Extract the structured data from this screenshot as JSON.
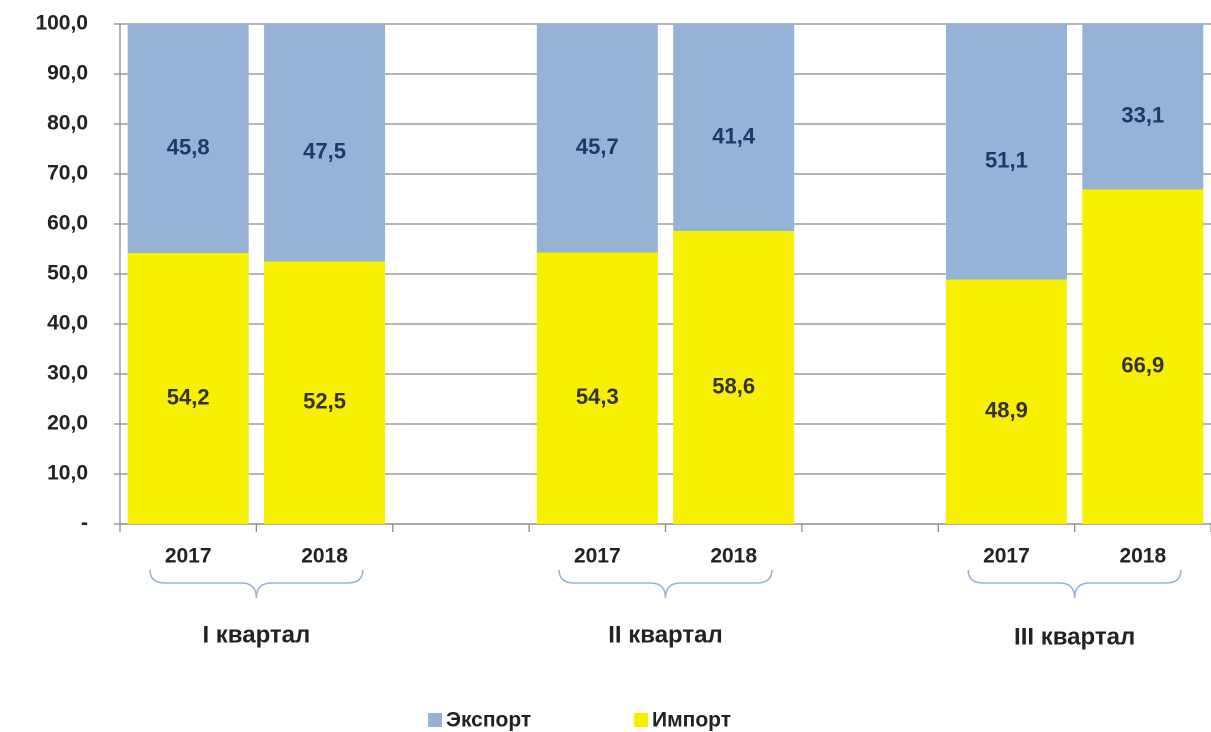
{
  "chart_data": {
    "type": "stacked_bar",
    "categories": [
      "2017",
      "2018",
      null,
      "2017",
      "2018",
      null,
      "2017",
      "2018"
    ],
    "groups": [
      "I квартал",
      "II квартал",
      "III квартал"
    ],
    "series": [
      {
        "name": "Экспорт",
        "color": "#95b3d7",
        "values": [
          45.8,
          47.5,
          null,
          45.7,
          41.4,
          null,
          51.1,
          33.1
        ],
        "value_labels": [
          "45,8",
          "47,5",
          null,
          "45,7",
          "41,4",
          null,
          "51,1",
          "33,1"
        ]
      },
      {
        "name": "Импорт",
        "color": "#f7f000",
        "values": [
          54.2,
          52.5,
          null,
          54.3,
          58.6,
          null,
          48.9,
          66.9
        ],
        "value_labels": [
          "54,2",
          "52,5",
          null,
          "54,3",
          "58,6",
          null,
          "48,9",
          "66,9"
        ]
      }
    ],
    "ylim": [
      0,
      100
    ],
    "yticks": [
      {
        "value": 0,
        "label": "-"
      },
      {
        "value": 10,
        "label": "10,0"
      },
      {
        "value": 20,
        "label": "20,0"
      },
      {
        "value": 30,
        "label": "30,0"
      },
      {
        "value": 40,
        "label": "40,0"
      },
      {
        "value": 50,
        "label": "50,0"
      },
      {
        "value": 60,
        "label": "60,0"
      },
      {
        "value": 70,
        "label": "70,0"
      },
      {
        "value": 80,
        "label": "80,0"
      },
      {
        "value": 90,
        "label": "90,0"
      },
      {
        "value": 100,
        "label": "100,0"
      }
    ],
    "grid": true,
    "legend": "bottom"
  }
}
